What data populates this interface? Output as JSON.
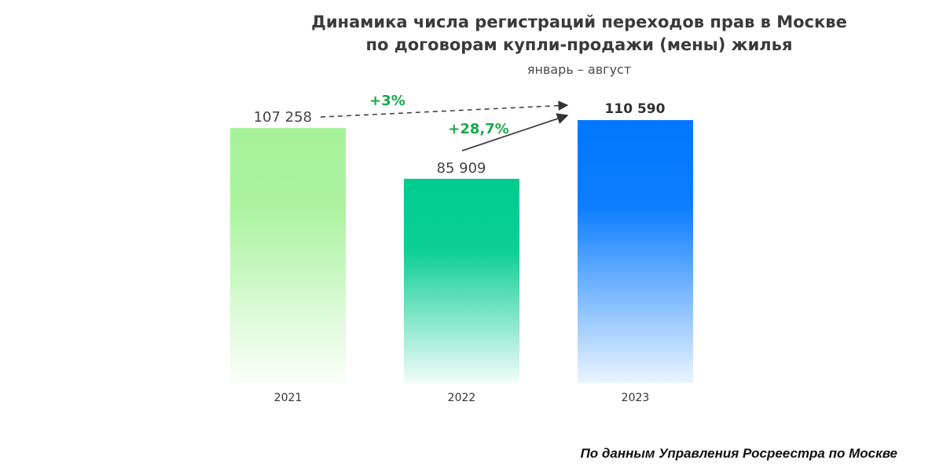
{
  "header": {
    "title_line1": "Динамика числа регистраций переходов прав в Москве",
    "title_line2": "по договорам купли-продажи (мены) жилья",
    "subtitle": "январь – август"
  },
  "footer": {
    "source": "По данным Управления Росреестра по Москве"
  },
  "chart_data": {
    "type": "bar",
    "title": "Динамика числа регистраций переходов прав в Москве по договорам купли-продажи (мены) жилья",
    "subtitle": "январь – август",
    "categories": [
      "2021",
      "2022",
      "2023"
    ],
    "values": [
      107258,
      85909,
      110590
    ],
    "value_labels": [
      "107 258",
      "85 909",
      "110 590"
    ],
    "xlabel": "",
    "ylabel": "",
    "ylim": [
      0,
      110590
    ],
    "grid": false,
    "legend": "none",
    "colors": [
      "#a6f29a",
      "#00cc8f",
      "#0077ff"
    ],
    "annotations": [
      {
        "text": "+3%",
        "from": "2021",
        "to": "2023",
        "style": "dashed",
        "color": "#1aa84a"
      },
      {
        "text": "+28,7%",
        "from": "2022",
        "to": "2023",
        "style": "solid",
        "color": "#1aa84a"
      }
    ]
  }
}
